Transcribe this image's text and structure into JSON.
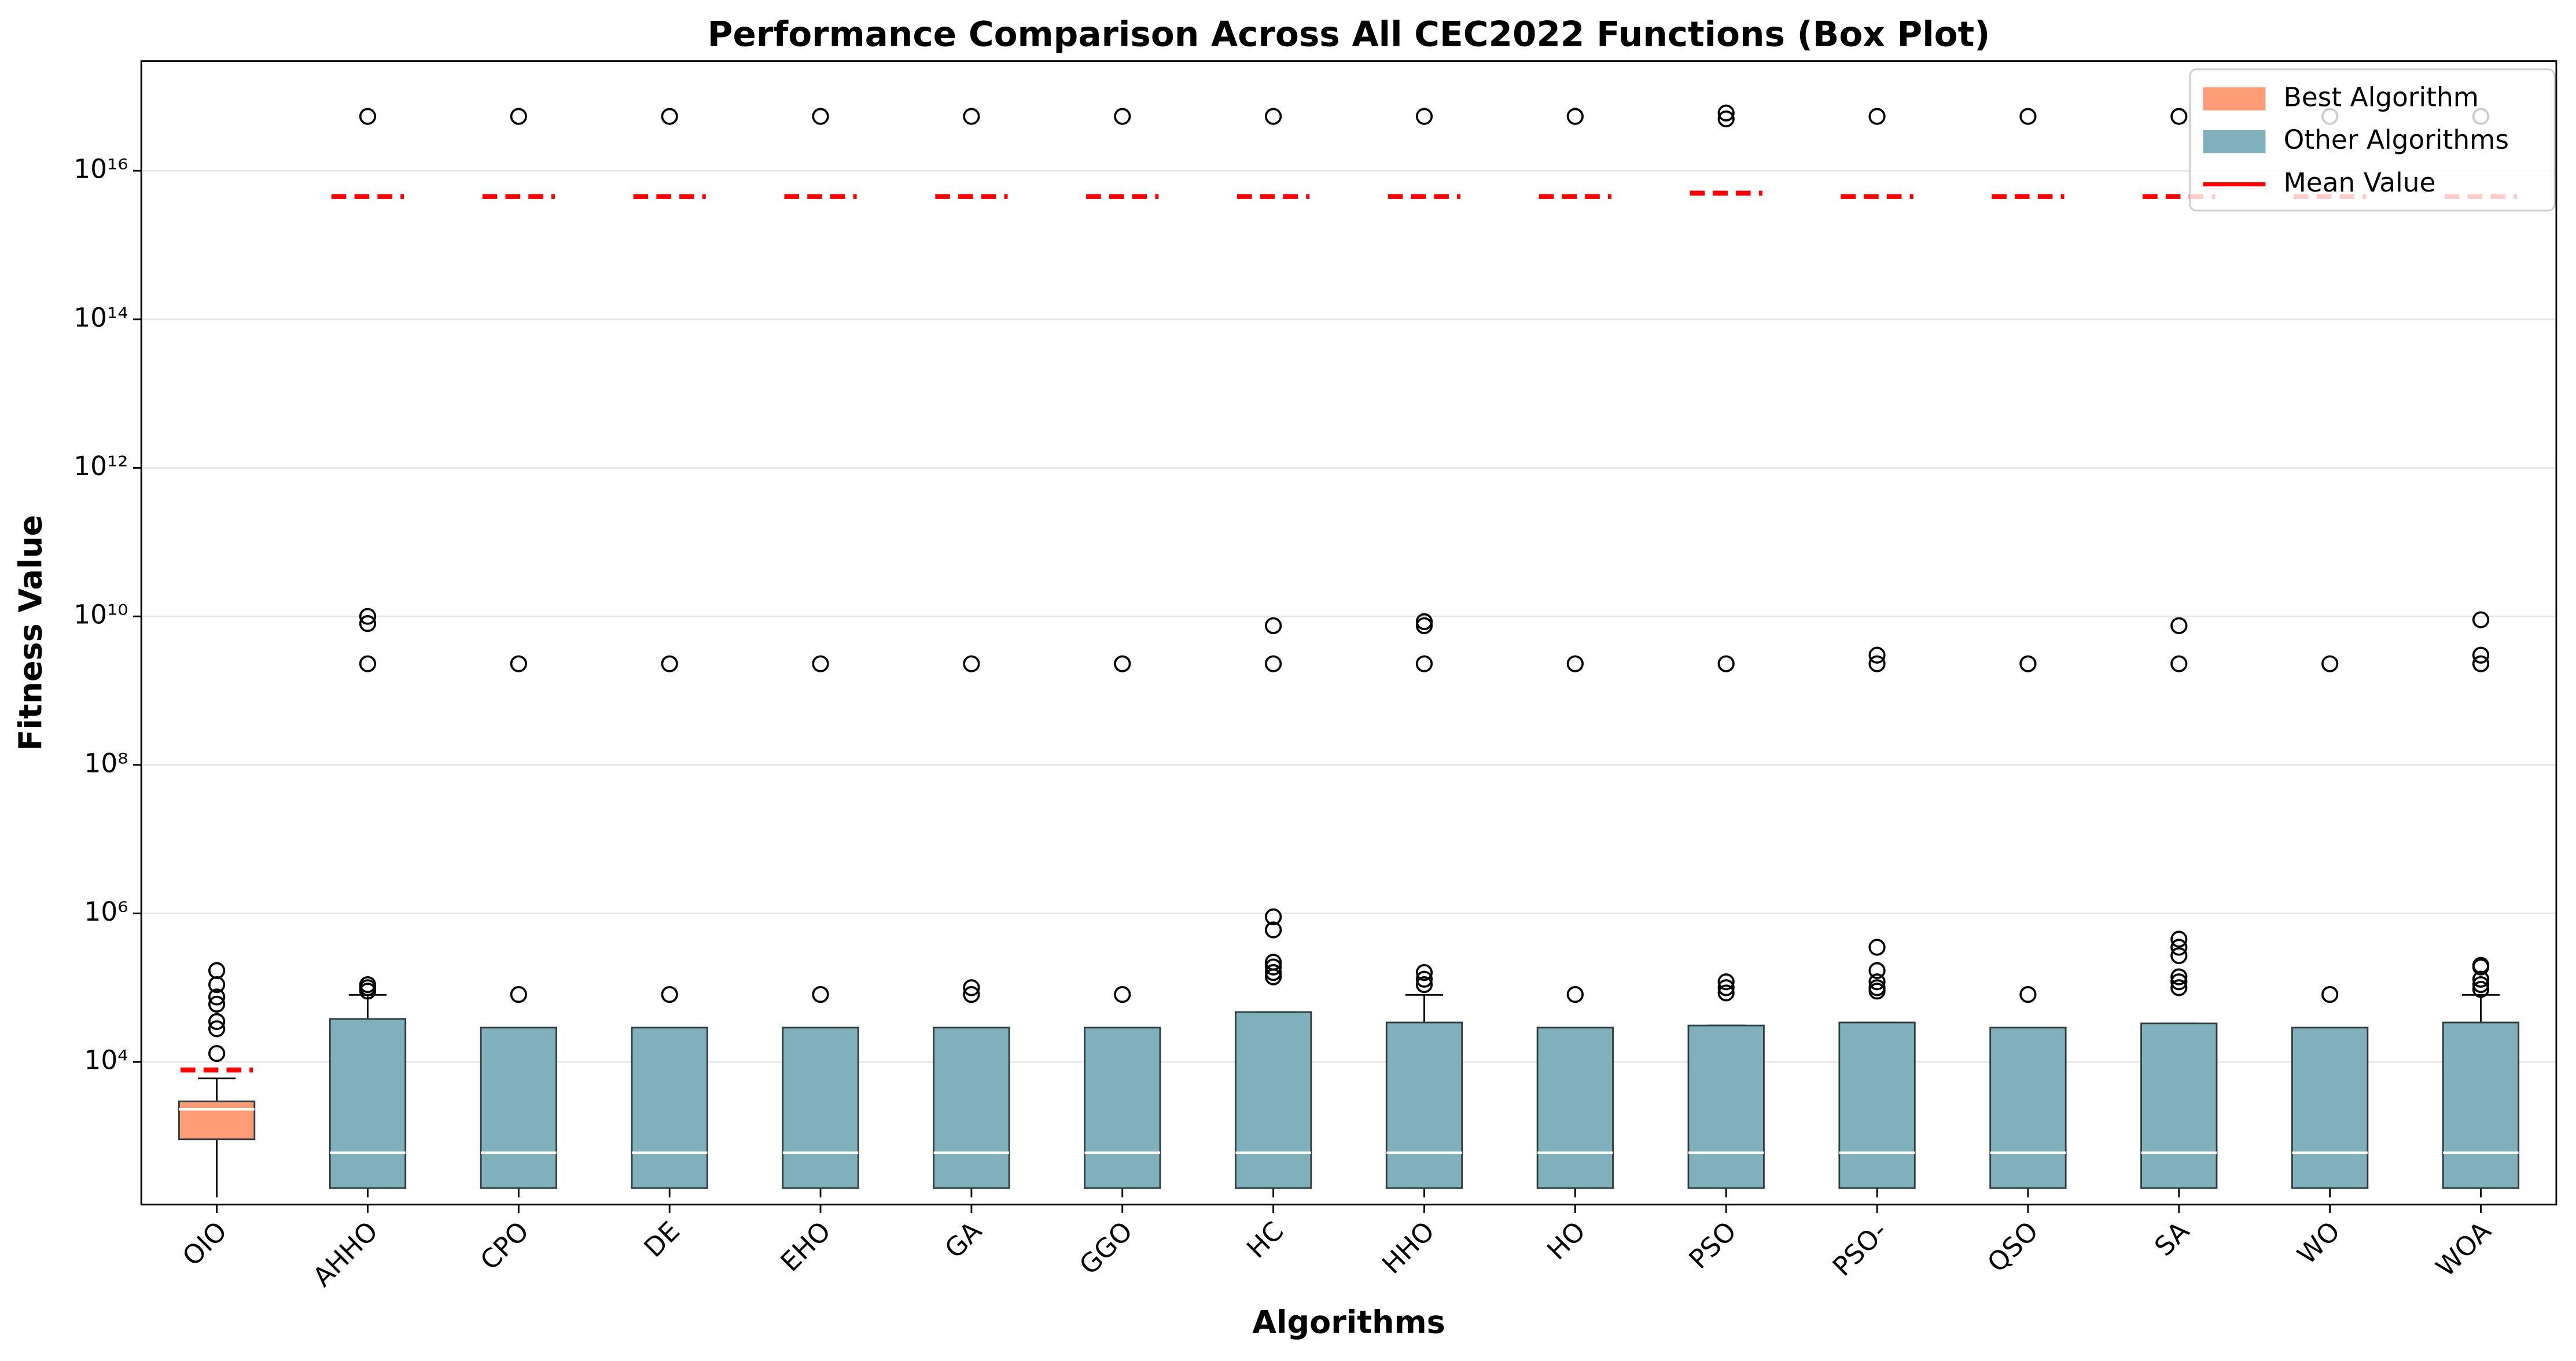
{
  "chart_data": {
    "type": "box",
    "title": "Performance Comparison Across All CEC2022 Functions (Box Plot)",
    "x_label": "Algorithms",
    "y_label": "Fitness Value",
    "log_y": true,
    "grid": true,
    "legend_position": "upper right",
    "categories": [
      "OIO",
      "AHHO",
      "CPO",
      "DE",
      "EHO",
      "GA",
      "GGO",
      "HC",
      "HHO",
      "HO",
      "PSO",
      "PSO-",
      "QSO",
      "SA",
      "WO",
      "WOA"
    ],
    "ylim": [
      120,
      300000000000000000
    ],
    "yticks": [
      {
        "value": 10000,
        "label": "10⁴"
      },
      {
        "value": 1000000,
        "label": "10⁶"
      },
      {
        "value": 100000000,
        "label": "10⁸"
      },
      {
        "value": 10000000000,
        "label": "10¹⁰"
      },
      {
        "value": 1000000000000,
        "label": "10¹²"
      },
      {
        "value": 100000000000000,
        "label": "10¹⁴"
      },
      {
        "value": 10000000000000000,
        "label": "10¹⁶"
      }
    ],
    "series": [
      {
        "name": "Best Algorithm",
        "color": "#ff9c78",
        "whislo": [
          150,
          null,
          null,
          null,
          null,
          null,
          null,
          null,
          null,
          null,
          null,
          null,
          null,
          null,
          null,
          null
        ],
        "q1": [
          910,
          null,
          null,
          null,
          null,
          null,
          null,
          null,
          null,
          null,
          null,
          null,
          null,
          null,
          null,
          null
        ],
        "median": [
          2300,
          null,
          null,
          null,
          null,
          null,
          null,
          null,
          null,
          null,
          null,
          null,
          null,
          null,
          null,
          null
        ],
        "q3": [
          2950,
          null,
          null,
          null,
          null,
          null,
          null,
          null,
          null,
          null,
          null,
          null,
          null,
          null,
          null,
          null
        ],
        "whishi": [
          6000,
          null,
          null,
          null,
          null,
          null,
          null,
          null,
          null,
          null,
          null,
          null,
          null,
          null,
          null,
          null
        ],
        "outliers": [
          [
            170000,
            110000,
            75000,
            60000,
            35000,
            28000,
            13000
          ],
          null,
          null,
          null,
          null,
          null,
          null,
          null,
          null,
          null,
          null,
          null,
          null,
          null,
          null,
          null
        ]
      },
      {
        "name": "Other Algorithms",
        "color": "#7fb0bc",
        "whislo": [
          null,
          150,
          150,
          150,
          150,
          150,
          150,
          150,
          150,
          150,
          150,
          150,
          150,
          150,
          150,
          150
        ],
        "q1": [
          null,
          200,
          200,
          200,
          200,
          200,
          200,
          200,
          200,
          200,
          200,
          200,
          200,
          200,
          200,
          200
        ],
        "median": [
          null,
          600,
          600,
          600,
          600,
          600,
          600,
          600,
          600,
          600,
          600,
          600,
          600,
          600,
          600,
          600
        ],
        "q3": [
          null,
          38000,
          29000,
          29000,
          29000,
          29000,
          29000,
          47000,
          34000,
          29000,
          31000,
          34000,
          29000,
          33000,
          29000,
          34000
        ],
        "whishi": [
          null,
          80000,
          29000,
          29000,
          29000,
          29000,
          29000,
          47000,
          80000,
          29000,
          31000,
          34000,
          29000,
          33000,
          29000,
          80000
        ],
        "outliers": [
          null,
          [
            54000000000000000,
            10000000000,
            8000000000,
            2300000000,
            110000,
            100000,
            90000
          ],
          [
            54000000000000000,
            2300000000,
            81000
          ],
          [
            54000000000000000,
            2300000000,
            81000
          ],
          [
            54000000000000000,
            2300000000,
            81000
          ],
          [
            54000000000000000,
            2300000000,
            100000,
            81000
          ],
          [
            54000000000000000,
            2300000000,
            81000
          ],
          [
            54000000000000000,
            7500000000,
            2300000000,
            900000,
            600000,
            220000,
            190000,
            160000,
            140000
          ],
          [
            54000000000000000,
            8500000000,
            7500000000,
            2300000000,
            160000,
            130000,
            110000
          ],
          [
            54000000000000000,
            2300000000,
            81000
          ],
          [
            60000000000000000,
            50000000000000000,
            2300000000,
            120000,
            100000,
            85000
          ],
          [
            54000000000000000,
            3000000000,
            2300000000,
            350000,
            170000,
            120000,
            100000,
            90000
          ],
          [
            54000000000000000,
            2300000000,
            81000
          ],
          [
            54000000000000000,
            7500000000,
            2300000000,
            450000,
            350000,
            270000,
            140000,
            120000,
            100000
          ],
          [
            54000000000000000,
            2300000000,
            81000
          ],
          [
            54000000000000000,
            9000000000,
            3000000000,
            2300000000,
            200000,
            190000,
            130000,
            110000,
            95000
          ]
        ]
      },
      {
        "name": "Mean Value",
        "color": "#ff0000",
        "mean": [
          7800,
          4500000000000000,
          4500000000000000,
          4500000000000000,
          4500000000000000,
          4500000000000000,
          4500000000000000,
          4500000000000000,
          4500000000000000,
          4500000000000000,
          5000000000000000,
          4500000000000000,
          4500000000000000,
          4500000000000000,
          4500000000000000,
          4500000000000000
        ]
      }
    ]
  }
}
